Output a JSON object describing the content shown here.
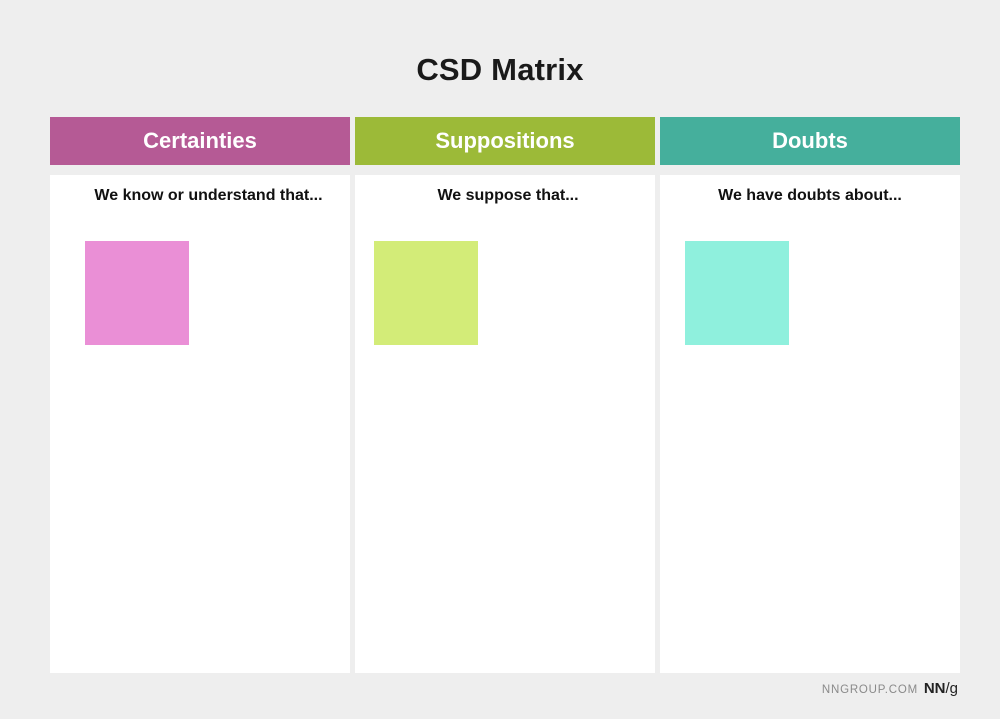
{
  "title": "CSD Matrix",
  "columns": [
    {
      "header": "Certainties",
      "prompt": "We know or understand that...",
      "header_color": "#b55a95",
      "note_color": "#ea8fd6"
    },
    {
      "header": "Suppositions",
      "prompt": "We suppose that...",
      "header_color": "#9cba38",
      "note_color": "#d3ec78"
    },
    {
      "header": "Doubts",
      "prompt": "We have doubts about...",
      "header_color": "#45af9c",
      "note_color": "#8ff0dd"
    }
  ],
  "footer": {
    "site": "NNGROUP.COM",
    "logo_main": "NN",
    "logo_slash": "/",
    "logo_tail": "g"
  }
}
